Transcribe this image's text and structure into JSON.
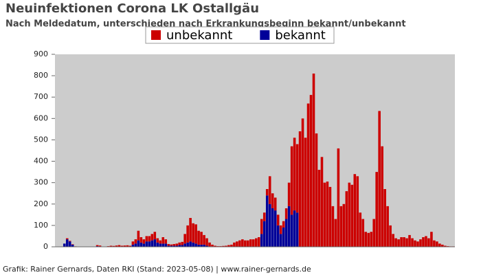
{
  "chart_data": {
    "type": "stacked-bar",
    "title": "Neuinfektionen Corona LK Ostallgäu",
    "subtitle": "Nach Meldedatum, unterschieden nach Erkrankungsbeginn bekannt/unbekannt",
    "footer": "Grafik: Rainer Gernards, Daten RKI (Stand: 2023-05-08) | www.rainer-gernards.de",
    "ylim": [
      0,
      900
    ],
    "yticks": [
      0,
      100,
      200,
      300,
      400,
      500,
      600,
      700,
      800,
      900
    ],
    "series": [
      {
        "name": "unbekannt",
        "color": "#cc0000",
        "values": [
          0,
          0,
          0,
          0,
          5,
          3,
          2,
          2,
          1,
          0,
          0,
          1,
          0,
          0,
          0,
          5,
          4,
          0,
          0,
          3,
          5,
          4,
          6,
          8,
          5,
          6,
          7,
          5,
          15,
          20,
          45,
          25,
          20,
          25,
          25,
          30,
          35,
          20,
          15,
          30,
          20,
          8,
          6,
          8,
          10,
          12,
          15,
          45,
          80,
          110,
          90,
          90,
          65,
          60,
          45,
          35,
          18,
          8,
          5,
          3,
          3,
          4,
          5,
          8,
          10,
          20,
          25,
          30,
          35,
          30,
          30,
          35,
          35,
          40,
          45,
          70,
          40,
          30,
          130,
          70,
          60,
          50,
          40,
          30,
          50,
          110,
          320,
          340,
          320,
          540,
          600,
          510,
          670,
          710,
          810,
          530,
          360,
          420,
          300,
          305,
          280,
          190,
          130,
          460,
          190,
          200,
          260,
          300,
          290,
          340,
          330,
          160,
          130,
          70,
          65,
          70,
          130,
          350,
          635,
          470,
          270,
          190,
          100,
          60,
          40,
          35,
          45,
          45,
          40,
          55,
          40,
          30,
          25,
          35,
          45,
          50,
          40,
          70,
          30,
          25,
          15,
          10,
          5,
          3,
          2,
          2
        ]
      },
      {
        "name": "bekannt",
        "color": "#000099",
        "values": [
          0,
          0,
          0,
          15,
          35,
          25,
          10,
          0,
          0,
          0,
          0,
          0,
          0,
          0,
          0,
          3,
          2,
          0,
          0,
          0,
          0,
          0,
          0,
          0,
          0,
          0,
          0,
          0,
          10,
          15,
          30,
          20,
          15,
          25,
          25,
          30,
          35,
          20,
          15,
          15,
          15,
          5,
          5,
          5,
          5,
          8,
          8,
          15,
          20,
          25,
          20,
          15,
          10,
          10,
          10,
          5,
          2,
          2,
          0,
          0,
          0,
          0,
          0,
          0,
          0,
          0,
          0,
          0,
          0,
          0,
          0,
          0,
          0,
          0,
          0,
          60,
          120,
          240,
          200,
          180,
          170,
          100,
          60,
          90,
          130,
          190,
          150,
          170,
          160,
          0,
          0,
          0,
          0,
          0,
          0,
          0,
          0,
          0,
          0,
          0,
          0,
          0,
          0,
          0,
          0,
          0,
          0,
          0,
          0,
          0,
          0,
          0,
          0,
          0,
          0,
          0,
          0,
          0,
          0,
          0,
          0,
          0,
          0,
          0,
          0,
          0,
          0,
          0,
          0,
          0,
          0,
          0,
          0,
          0,
          0,
          0,
          0,
          0,
          0,
          0,
          0,
          0,
          0,
          0,
          0,
          0,
          0
        ]
      }
    ]
  }
}
